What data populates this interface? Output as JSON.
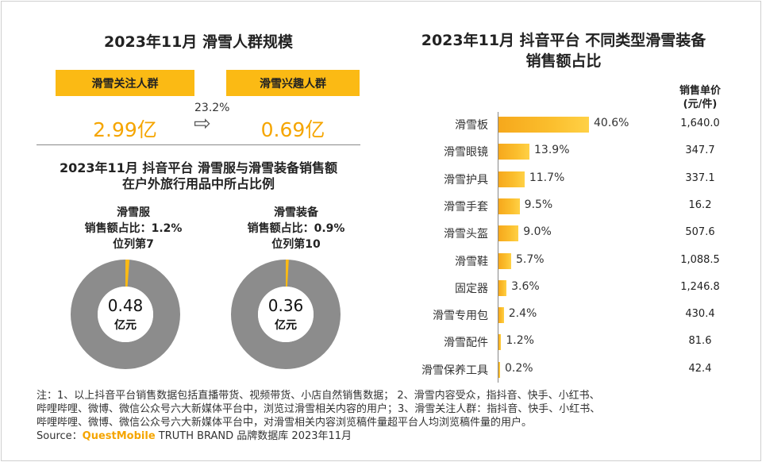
{
  "left_panel": {
    "title": "2023年11月 滑雪人群规模",
    "box1_label": "滑雪关注人群",
    "box2_label": "滑雪兴趣人群",
    "box1_value": "2.99亿",
    "box2_value": "0.69亿",
    "ratio": "23.2%",
    "arrow_icon": "⇨"
  },
  "lower_panel": {
    "title_line1": "2023年11月 抖音平台 滑雪服与滑雪装备销售额",
    "title_line2": "在户外旅行用品中所占比例",
    "donut1": {
      "name": "滑雪服",
      "share_line": "销售额占比：1.2%",
      "rank_line": "位列第7",
      "center_value": "0.48",
      "center_unit": "亿元",
      "share": 1.2
    },
    "donut2": {
      "name": "滑雪装备",
      "share_line": "销售额占比：0.9%",
      "rank_line": "位列第10",
      "center_value": "0.36",
      "center_unit": "亿元",
      "share": 0.9
    }
  },
  "colors": {
    "accent": "#FBBA14",
    "donut_gray": "#8C8C8C",
    "value_orange": "#F5A500"
  },
  "chart_data": {
    "type": "bar",
    "orientation": "horizontal",
    "title_line1": "2023年11月 抖音平台 不同类型滑雪装备",
    "title_line2": "销售额占比",
    "price_header_line1": "销售单价",
    "price_header_line2": "(元/件)",
    "categories": [
      "滑雪板",
      "滑雪眼镜",
      "滑雪护具",
      "滑雪手套",
      "滑雪头盔",
      "滑雪鞋",
      "固定器",
      "滑雪专用包",
      "滑雪配件",
      "滑雪保养工具"
    ],
    "values": [
      40.6,
      13.9,
      11.7,
      9.5,
      9.0,
      5.7,
      3.6,
      2.4,
      1.2,
      0.2
    ],
    "value_labels": [
      "40.6%",
      "13.9%",
      "11.7%",
      "9.5%",
      "9.0%",
      "5.7%",
      "3.6%",
      "2.4%",
      "1.2%",
      "0.2%"
    ],
    "prices": [
      "1,640.0",
      "347.7",
      "337.1",
      "16.2",
      "507.6",
      "1,088.5",
      "1,246.8",
      "430.4",
      "81.6",
      "42.4"
    ],
    "xlim": [
      0,
      40.6
    ]
  },
  "footer": {
    "note_line1": "注：1、以上抖音平台销售数据包括直播带货、视频带货、小店自然销售数据； 2、滑雪内容受众，指抖音、快手、小红书、",
    "note_line2": "哔哩哔哩、微博、微信公众号六大新媒体平台中，浏览过滑雪相关内容的用户；3、滑雪关注人群：指抖音、快手、小红书、",
    "note_line3": "哔哩哔哩、微博、微信公众号六大新媒体平台中，对滑雪相关内容浏览稿件量超平台人均浏览稿件量的用户。",
    "source_prefix": "Source：",
    "source_brand": "QuestMobile",
    "source_suffix": " TRUTH BRAND 品牌数据库 2023年11月"
  }
}
